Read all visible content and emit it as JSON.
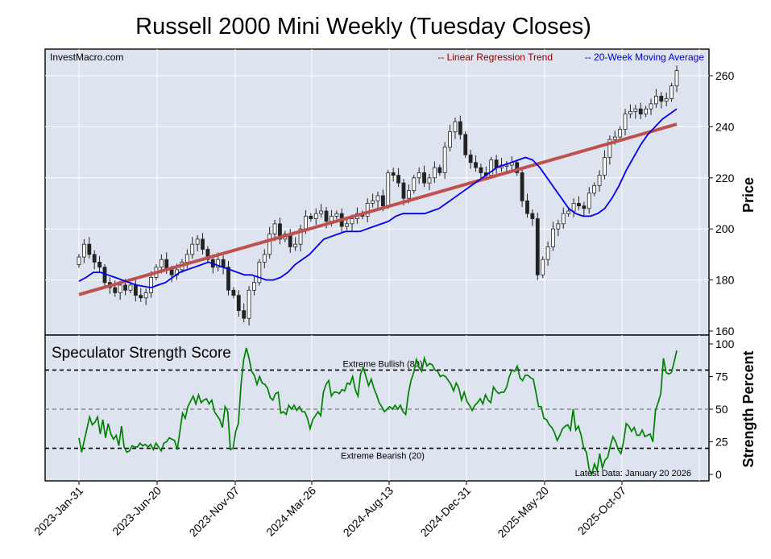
{
  "title": "Russell 2000 Mini Weekly (Tuesday Closes)",
  "watermark": "InvestMacro.com",
  "chart_data": [
    {
      "type": "candlestick",
      "ylabel": "Price",
      "ylim": [
        160,
        270
      ],
      "yticks": [
        160,
        180,
        200,
        220,
        240,
        260
      ],
      "grid": true,
      "legend": {
        "placement": "top-right",
        "entries": [
          {
            "label": "-- Linear Regression Trend",
            "color": "#8b0000"
          },
          {
            "label": "-- 20-Week Moving Average",
            "color": "#0000cc"
          }
        ]
      },
      "regression_trend": {
        "start": 174.3,
        "end": 241
      },
      "candle_closes": [
        189,
        194,
        190,
        187,
        185,
        179,
        177,
        175,
        178,
        176,
        178,
        174,
        173,
        175,
        181,
        185,
        188,
        184,
        182,
        184,
        187,
        190,
        194,
        196,
        192,
        188,
        185,
        188,
        185,
        176,
        174,
        168,
        165,
        176,
        179,
        187,
        190,
        198,
        202,
        196,
        198,
        193,
        194,
        200,
        205,
        204,
        206,
        207,
        203,
        205,
        206,
        201,
        202,
        204,
        206,
        205,
        210,
        211,
        213,
        209,
        222,
        221,
        218,
        212,
        215,
        220,
        222,
        218,
        220,
        224,
        222,
        232,
        238,
        242,
        237,
        229,
        226,
        224,
        222,
        221,
        227,
        224,
        225,
        225,
        226,
        222,
        211,
        206,
        204,
        182,
        188,
        193,
        200,
        202,
        206,
        207,
        210,
        209,
        208,
        214,
        217,
        221,
        228,
        235,
        236,
        239,
        245,
        246,
        247,
        245,
        247,
        249,
        252,
        250,
        251,
        256,
        262
      ],
      "moving_average_20wk": [
        179.5,
        181,
        183,
        183,
        182,
        181,
        180,
        179,
        178,
        177.5,
        177,
        178,
        179,
        181,
        183,
        184,
        185,
        186,
        187,
        186,
        185,
        184,
        183,
        182,
        182,
        181,
        180,
        180,
        181,
        183,
        186,
        188,
        190,
        193,
        196,
        197,
        198,
        199,
        199,
        199,
        200,
        201,
        202,
        203,
        205,
        206,
        206,
        206,
        206,
        207,
        208,
        210,
        212,
        214,
        216,
        218,
        220,
        222,
        224,
        225,
        226,
        227,
        228,
        227,
        224,
        220,
        216,
        212,
        208,
        206,
        205,
        205,
        206,
        208,
        212,
        217,
        223,
        228,
        233,
        237,
        240,
        243,
        245,
        247
      ],
      "series": [
        {
          "name": "-- Linear Regression Trend",
          "color": "#c0504d"
        },
        {
          "name": "-- 20-Week Moving Average",
          "color": "#0000ee"
        }
      ]
    },
    {
      "type": "line",
      "title": "Speculator Strength Score",
      "ylabel": "Strength Percent",
      "ylim": [
        0,
        100
      ],
      "yticks": [
        0,
        25,
        50,
        75,
        100
      ],
      "series": [
        {
          "name": "Speculator Strength Score",
          "color": "#008000",
          "values": [
            28,
            17,
            26,
            35,
            44,
            38,
            40,
            44,
            31,
            42,
            28,
            39,
            31,
            27,
            30,
            22,
            37,
            21,
            17,
            18,
            22,
            21,
            21,
            24,
            22,
            23,
            21,
            23,
            19,
            24,
            21,
            18,
            24,
            25,
            28,
            27,
            26,
            19,
            33,
            47,
            43,
            52,
            56,
            60,
            54,
            61,
            55,
            57,
            58,
            54,
            57,
            48,
            45,
            42,
            36,
            52,
            48,
            19,
            20,
            33,
            39,
            69,
            88,
            97,
            89,
            79,
            76,
            69,
            75,
            70,
            69,
            66,
            59,
            57,
            62,
            63,
            47,
            48,
            46,
            53,
            50,
            53,
            49,
            52,
            48,
            48,
            43,
            35,
            42,
            45,
            48,
            45,
            63,
            69,
            72,
            60,
            63,
            63,
            62,
            65,
            64,
            70,
            69,
            75,
            65,
            60,
            77,
            82,
            75,
            68,
            73,
            66,
            61,
            55,
            52,
            48,
            50,
            52,
            50,
            53,
            50,
            53,
            48,
            46,
            62,
            72,
            78,
            88,
            82,
            79,
            89,
            83,
            85,
            84,
            80,
            79,
            75,
            76,
            75,
            72,
            69,
            64,
            70,
            66,
            57,
            63,
            56,
            53,
            49,
            53,
            55,
            58,
            54,
            61,
            57,
            55,
            67,
            64,
            62,
            63,
            63,
            67,
            75,
            80,
            79,
            83,
            74,
            72,
            76,
            76,
            74,
            73,
            63,
            52,
            52,
            43,
            42,
            38,
            36,
            32,
            26,
            30,
            35,
            37,
            38,
            34,
            50,
            34,
            37,
            30,
            20,
            17,
            4,
            0,
            8,
            3,
            16,
            5,
            11,
            13,
            22,
            29,
            25,
            19,
            16,
            25,
            39,
            37,
            33,
            36,
            30,
            30,
            34,
            29,
            30,
            31,
            25,
            49,
            55,
            62,
            89,
            78,
            77,
            78,
            86,
            95
          ]
        }
      ],
      "reference_lines": [
        {
          "label": "Extreme Bullish (80)",
          "value": 80
        },
        {
          "label": "",
          "value": 50
        },
        {
          "label": "Extreme Bearish (20)",
          "value": 20
        }
      ],
      "annotation": "Latest Data: January 20 2026"
    }
  ],
  "x_ticks": [
    "2023-Jan-31",
    "2023-Jun-20",
    "2023-Nov-07",
    "2024-Mar-26",
    "2024-Aug-13",
    "2024-Dec-31",
    "2025-May-20",
    "2025-Oct-07"
  ],
  "colors": {
    "panel_bg": "#dde3ef",
    "candle_up": "#ffffff",
    "candle_down": "#222222",
    "trend": "#c0504d",
    "ma": "#0000ee",
    "strength": "#008000"
  }
}
